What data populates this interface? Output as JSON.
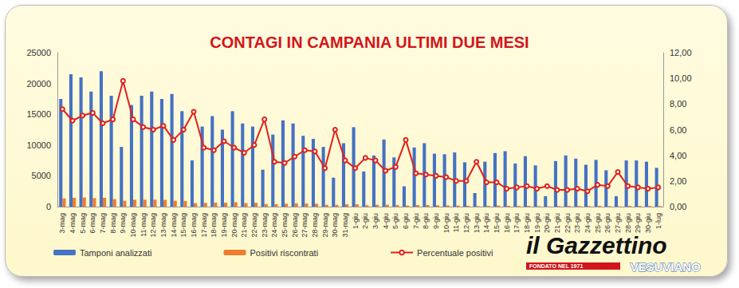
{
  "chart_data": {
    "type": "bar",
    "title": "CONTAGI IN CAMPANIA ULTIMI DUE MESI",
    "categories": [
      "3-mag",
      "4-mag",
      "5-mag",
      "6-mag",
      "7-mag",
      "8-mag",
      "9-mag",
      "10-mag",
      "11-mag",
      "12-mag",
      "13-mag",
      "14-mag",
      "15-mag",
      "16-mag",
      "17-mag",
      "18-mag",
      "19-mag",
      "20-mag",
      "21-mag",
      "22-mag",
      "23-mag",
      "24-mag",
      "25-mag",
      "26-mag",
      "27-mag",
      "28-mag",
      "29-mag",
      "30-mag",
      "31-mag",
      "1-giu",
      "2-giu",
      "3-giu",
      "4-giu",
      "5-giu",
      "6-giu",
      "7-giu",
      "8-giu",
      "9-giu",
      "10-giu",
      "11-giu",
      "12-giu",
      "13-giu",
      "14-giu",
      "15-giu",
      "16-giu",
      "17-giu",
      "18-giu",
      "19-giu",
      "20-giu",
      "21-giu",
      "22-giu",
      "23-giu",
      "24-giu",
      "25-giu",
      "26-giu",
      "27-giu",
      "28-giu",
      "29-giu",
      "30-giu",
      "1-lug"
    ],
    "series": [
      {
        "name": "Tamponi analizzati",
        "color": "#4472c4",
        "values": [
          17500,
          21500,
          21000,
          18700,
          22000,
          18000,
          9700,
          16500,
          18000,
          18700,
          17500,
          18300,
          15500,
          7500,
          13000,
          14700,
          12500,
          15500,
          13500,
          13000,
          6000,
          11700,
          14000,
          13500,
          11500,
          11000,
          9700,
          4700,
          10300,
          12900,
          5700,
          8300,
          10900,
          8000,
          3300,
          9600,
          10300,
          8600,
          8500,
          8800,
          7200,
          2200,
          7300,
          8700,
          9000,
          7000,
          8200,
          6700,
          1700,
          7400,
          8300,
          7800,
          6800,
          7600,
          5900,
          1700,
          7500,
          7500,
          7300,
          6300
        ]
      },
      {
        "name": "Positivi riscontrati",
        "color": "#ed7d31",
        "values": [
          1330,
          1440,
          1490,
          1370,
          1430,
          1220,
          950,
          1120,
          1120,
          1120,
          1100,
          950,
          930,
          560,
          600,
          650,
          640,
          710,
          570,
          620,
          410,
          410,
          480,
          530,
          510,
          470,
          290,
          280,
          370,
          390,
          220,
          300,
          310,
          250,
          170,
          250,
          260,
          210,
          200,
          180,
          140,
          80,
          140,
          170,
          130,
          110,
          130,
          90,
          30,
          100,
          110,
          110,
          80,
          130,
          90,
          50,
          120,
          110,
          100,
          90
        ]
      },
      {
        "name": "Percentuale positivi",
        "type": "line",
        "axis": "y2",
        "color": "#e0201b",
        "marker": "circle",
        "values": [
          7.6,
          6.7,
          7.1,
          7.3,
          6.5,
          6.8,
          9.8,
          6.8,
          6.2,
          6.0,
          6.3,
          5.2,
          6.0,
          7.4,
          4.6,
          4.4,
          5.1,
          4.6,
          4.2,
          4.8,
          6.8,
          3.5,
          3.4,
          3.9,
          4.4,
          4.3,
          3.0,
          6.0,
          3.6,
          3.0,
          3.8,
          3.6,
          2.8,
          3.1,
          5.2,
          2.6,
          2.5,
          2.4,
          2.3,
          2.0,
          2.0,
          3.5,
          1.9,
          1.9,
          1.4,
          1.5,
          1.6,
          1.4,
          1.6,
          1.3,
          1.3,
          1.4,
          1.2,
          1.7,
          1.6,
          2.7,
          1.6,
          1.5,
          1.4,
          1.5
        ]
      }
    ],
    "ylim": [
      0,
      25000
    ],
    "yticks": [
      0,
      5000,
      10000,
      15000,
      20000,
      25000
    ],
    "y2lim": [
      0,
      12
    ],
    "y2ticks": [
      {
        "value": 0,
        "label": "0,00"
      },
      {
        "value": 2,
        "label": "2,00"
      },
      {
        "value": 4,
        "label": "4,00"
      },
      {
        "value": 6,
        "label": "6,00"
      },
      {
        "value": 8,
        "label": "8,00"
      },
      {
        "value": 10,
        "label": "10,00"
      },
      {
        "value": 12,
        "label": "12,00"
      }
    ],
    "grid": false,
    "legend": "bottom",
    "annotations": [
      "il Gazzettino",
      "FONDATO NEL 1971",
      "VESUVIANO"
    ]
  }
}
